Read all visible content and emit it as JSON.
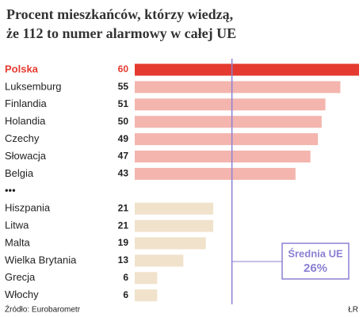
{
  "chart_data": {
    "type": "bar",
    "orientation": "horizontal",
    "title": [
      "Procent mieszkańców, którzy wiedzą,",
      "że 112 to numer alarmowy w całej UE"
    ],
    "categories": [
      "Polska",
      "Luksemburg",
      "Finlandia",
      "Holandia",
      "Czechy",
      "Słowacja",
      "Belgia",
      "•••",
      "Hiszpania",
      "Litwa",
      "Malta",
      "Wielka Brytania",
      "Grecja",
      "Włochy"
    ],
    "values": [
      60,
      55,
      51,
      50,
      49,
      47,
      43,
      null,
      21,
      21,
      19,
      13,
      6,
      6
    ],
    "colors": [
      "#e53a2f",
      "#f3b5ae",
      "#f3b5ae",
      "#f3b5ae",
      "#f3b5ae",
      "#f3b5ae",
      "#f3b5ae",
      null,
      "#f0e2cb",
      "#f0e2cb",
      "#f0e2cb",
      "#f0e2cb",
      "#f0e2cb",
      "#f0e2cb"
    ],
    "highlight_color": "#e53a2f",
    "xlim": [
      0,
      60
    ],
    "reference_line": {
      "label": "Średnia UE",
      "value": 26,
      "value_label": "26%",
      "color": "#8b80d2"
    },
    "source": "Źródło: Eurobarometr",
    "credit": "ŁR"
  }
}
